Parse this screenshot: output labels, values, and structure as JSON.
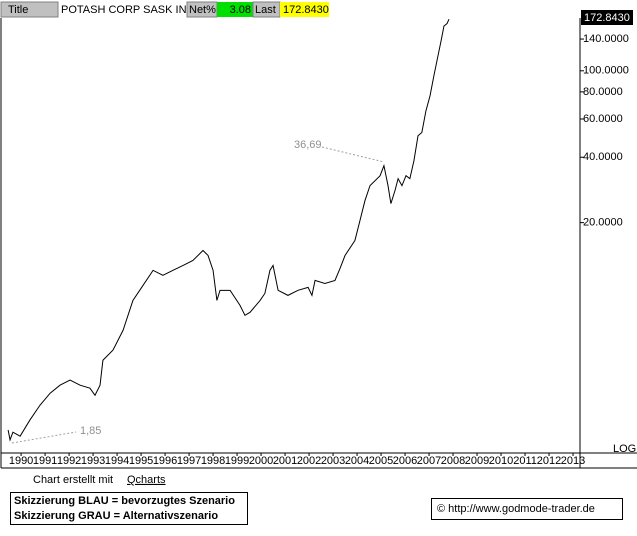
{
  "header": {
    "title_label": "Title",
    "symbol": "POTASH CORP SASK INC",
    "net_label": "Net%",
    "net_value": "3.08",
    "last_label": "Last",
    "last_value": "172.8430"
  },
  "chart_data": {
    "type": "line",
    "log_scale": true,
    "scale_label": "LOG",
    "color": "#000000",
    "x": [
      1989.46,
      1989.54,
      1989.66,
      1989.96,
      1990.37,
      1990.79,
      1991.21,
      1991.62,
      1992.04,
      1992.46,
      1992.87,
      1993.08,
      1993.29,
      1993.41,
      1993.83,
      1994.25,
      1994.66,
      1995.08,
      1995.5,
      1995.91,
      1996.33,
      1996.75,
      1997.16,
      1997.58,
      1997.79,
      1998.0,
      1998.16,
      1998.29,
      1998.71,
      1999.12,
      1999.33,
      1999.54,
      1999.96,
      2000.16,
      2000.37,
      2000.5,
      2000.71,
      2001.12,
      2001.54,
      2001.96,
      2002.12,
      2002.25,
      2002.66,
      2003.08,
      2003.29,
      2003.5,
      2003.91,
      2004.12,
      2004.33,
      2004.54,
      2004.96,
      2005.12,
      2005.29,
      2005.41,
      2005.58,
      2005.71,
      2005.87,
      2006.04,
      2006.2,
      2006.37,
      2006.54,
      2006.7,
      2006.87,
      2007.04,
      2007.2,
      2007.37,
      2007.5,
      2007.62,
      2007.75,
      2007.83
    ],
    "values": [
      2.22,
      2.0,
      2.17,
      2.08,
      2.47,
      2.89,
      3.28,
      3.57,
      3.77,
      3.57,
      3.46,
      3.21,
      3.57,
      4.65,
      5.18,
      6.39,
      8.77,
      10.28,
      12.06,
      11.44,
      12.06,
      12.7,
      13.39,
      14.89,
      14.13,
      12.06,
      8.77,
      9.76,
      9.76,
      8.33,
      7.49,
      7.73,
      8.77,
      9.45,
      12.06,
      12.7,
      9.76,
      9.25,
      9.76,
      10.07,
      9.25,
      10.84,
      10.5,
      10.84,
      12.31,
      14.13,
      16.55,
      20.44,
      25.27,
      29.6,
      32.9,
      36.58,
      29.6,
      24.47,
      28.07,
      31.87,
      29.6,
      32.9,
      31.87,
      38.55,
      50.23,
      52,
      65.41,
      76.64,
      94.7,
      116.9,
      137.1,
      160.6,
      165,
      172.843
    ],
    "xlim": [
      1989.33,
      2013.29
    ],
    "xticks": [
      1990,
      1991,
      1992,
      1993,
      1994,
      1995,
      1996,
      1997,
      1998,
      1999,
      2000,
      2001,
      2002,
      2003,
      2004,
      2005,
      2006,
      2007,
      2008,
      2009,
      2010,
      2011,
      2012,
      2013
    ],
    "ylim": [
      1.74,
      175
    ],
    "yticks": [
      {
        "value": 20,
        "label": "20.0000"
      },
      {
        "value": 40,
        "label": "40.0000"
      },
      {
        "value": 60,
        "label": "60.0000"
      },
      {
        "value": 80,
        "label": "80.0000"
      },
      {
        "value": 100,
        "label": "100.0000"
      },
      {
        "value": 140,
        "label": "140.0000"
      }
    ],
    "annotations": [
      "36,69",
      "1,85"
    ]
  },
  "footer": {
    "credit_prefix": "Chart erstellt mit",
    "credit_link": "Qcharts",
    "legend_blue": "Skizzierung BLAU = bevorzugtes Szenario",
    "legend_gray": "Skizzierung GRAU = Alternativszenario",
    "website": "© http://www.godmode-trader.de"
  }
}
